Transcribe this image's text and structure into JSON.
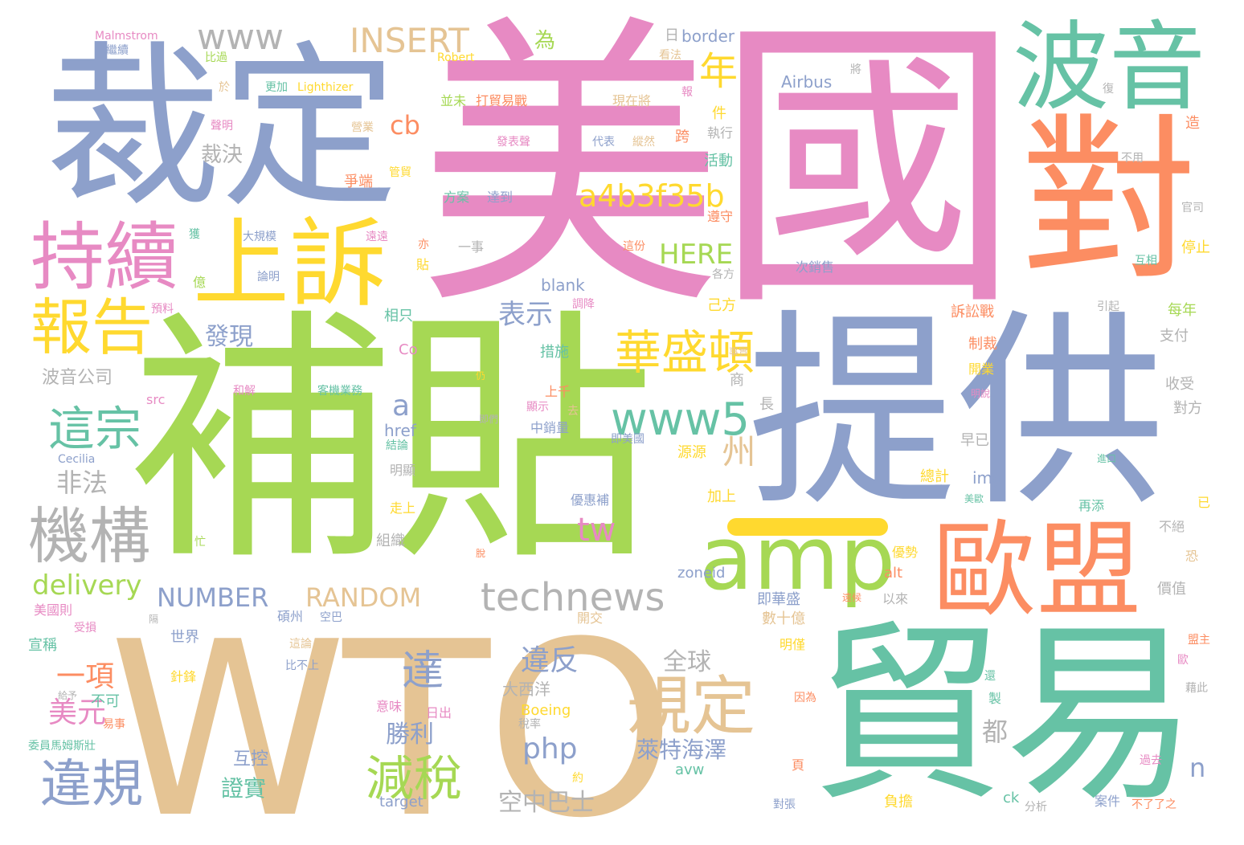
{
  "words": {
    "mei_guo": "美國",
    "bu_tie": "補貼",
    "wto": "WTO",
    "ti_gong": "提供",
    "cai_ding": "裁定",
    "mao_yi": "貿易",
    "bo_yin": "波音",
    "dui": "對",
    "ou_meng": "歐盟",
    "chi_xu": "持續",
    "shang_su": "上訴",
    "bao_gao": "報告",
    "amp": "amp",
    "gui_ding": "規定",
    "ji_gou": "機構",
    "hua_sheng_dun": "華盛頓",
    "zhe_zong": "這宗",
    "wei_gui": "違規",
    "jian_shui": "減稅",
    "technews": "technews",
    "www5": "www5",
    "www": "www",
    "insert": "INSERT",
    "a4b3f35b": "a4b3f35b",
    "da": "達",
    "nian": "年",
    "cb": "cb",
    "here": "HERE",
    "tw": "tw",
    "delivery": "delivery",
    "number": "NUMBER",
    "random": "RANDOM",
    "zhou": "州",
    "fa_xian": "發現",
    "biao_shi": "表示",
    "a": "a",
    "fei_fa": "非法",
    "yi_xiang": "一項",
    "mei_yuan": "美元",
    "wei_fan": "違反",
    "php": "php",
    "lai_te": "萊特海澤",
    "kong_zhong": "空中巴士",
    "sheng_li": "勝利",
    "n": "n",
    "dou": "都",
    "cai_jue": "裁決",
    "wei": "為",
    "quan_qiu": "全球",
    "bo_yin_gs": "波音公司",
    "zheng_shi": "證實",
    "hu_kong": "互控",
    "da_xi_yang": "大西洋",
    "blank": "blank",
    "airbus": "Airbus",
    "malmstrom": "Malmstrom",
    "robert": "Robert",
    "lighthizer": "Lighthizer",
    "border": "border",
    "boeing": "Boeing",
    "cecilia": "Cecilia",
    "co": "Co",
    "src": "src",
    "href": "href",
    "img": "img",
    "alt": "alt",
    "zoneid": "zoneid",
    "avw": "avw",
    "target": "target",
    "ck": "ck",
    "ri": "日",
    "bing_wei": "並未",
    "da_mao_yi_zhan": "打貿易戰",
    "xian_zai_jiang": "現在將",
    "kan_fa": "看法",
    "bi_guo": "比過",
    "kong_bao": "繼續",
    "geng_jia": "更加",
    "yu": "於",
    "sheng_ming": "聲明",
    "ying_ye": "營業",
    "fa_biao": "發表聲",
    "dai_biao": "代表",
    "zong_ran": "縱然",
    "kua": "跨",
    "zhi_xing": "執行",
    "jian": "件",
    "bao": "報",
    "huo_dong": "活動",
    "jiang": "將",
    "fu": "復",
    "zao": "造",
    "bu_yong": "不用",
    "guan_si": "官司",
    "ting_zhi": "停止",
    "hu_xiang": "互相",
    "zheng_duan": "爭端",
    "guan_mao": "管貿",
    "fang_an": "方案",
    "da_dao": "達到",
    "zun_shou": "遵守",
    "huo": "獲",
    "da_gui_mo": "大規模",
    "yuan_yuan": "遠遠",
    "yi_shi": "一事",
    "zhe_fen": "這份",
    "ci_xiao_shou": "次銷售",
    "yi": "億",
    "lun_ming": "論明",
    "ge_fang": "各方",
    "yu_liao": "預料",
    "xiang_zhi": "相只",
    "tiao_jiang": "調降",
    "ji_fang": "己方",
    "su_song_zhan": "訴訟戰",
    "yin_qi": "引起",
    "mei_nian": "每年",
    "zhi_fu": "支付",
    "zhi_cai": "制裁",
    "kai_ye": "開業",
    "cuo_shi": "措施",
    "shang": "商",
    "he_jie": "和解",
    "ke_ji_ye_wu": "客機業務",
    "shang_qian": "上千",
    "xian_shi": "顯示",
    "zhong_xiao": "中銷量",
    "ji_mei_guo": "即美國",
    "chang": "長",
    "zao_yi": "早已",
    "shou_shou": "收受",
    "dui_fang": "對方",
    "yuan_yuan2": "源源",
    "jie_lun": "結論",
    "ming_xian": "明顯",
    "zou_shang": "走上",
    "jia_shang": "加上",
    "you_hui_bu": "優惠補",
    "zong_ji": "總計",
    "zai_tian": "再添",
    "bu_jue": "不絕",
    "zu_zhi": "組織",
    "mang": "忙",
    "you_shi": "優勢",
    "yi_lai": "以來",
    "ji_hua_sheng": "即華盛",
    "jia_zhi": "價值",
    "mei_guo_ze": "美國則",
    "shou_sun": "受損",
    "shuo_zhou": "碩州",
    "kong_ba": "空巴",
    "kai_jiao": "開交",
    "shu_shi_yi": "數十億",
    "ming_jin": "明僅",
    "meng_zhu": "盟主",
    "xuan_cheng": "宣稱",
    "shi_jie": "世界",
    "zhe_lun": "這論",
    "bi_bu_shang": "比不上",
    "zhen_feng": "針鋒",
    "bu_ke": "不可",
    "yi_shi2": "易事",
    "yi_wei": "意味",
    "ri_chu": "日出",
    "shui_lv": "稅率",
    "zhi": "製",
    "yin_wei": "因為",
    "guo_qu": "過去",
    "fu_dan": "負擔",
    "an_jian": "案件",
    "bu_liao_zhi": "不了了之",
    "fen_xi": "分析",
    "wei_yuan": "委員馬姆斯壯",
    "yue": "約",
    "ye": "頁",
    "dui_zhang": "對張",
    "jin_kou": "進口",
    "huan": "還",
    "ji_ci": "藉此",
    "kong": "恐",
    "yi2": "已",
    "shi_shi": "事實",
    "fu_mou": "仍",
    "fu_chen": "即們",
    "hu": "去",
    "ou": "歐",
    "ming_shuo": "明說",
    "mei_ou": "美歐",
    "pao": "脫",
    "gei_yu": "給予",
    "yi_lai2": "亦",
    "tie": "貼",
    "ge": "隔",
    "jian_zheng": "遠候"
  },
  "colors": {
    "blue": "#8da0cb",
    "pink": "#e78ac3",
    "green": "#a6d854",
    "orange": "#fc8d62",
    "teal": "#66c2a5",
    "tan": "#e5c494",
    "yellow": "#ffd92f",
    "grey": "#b3b3b3"
  }
}
